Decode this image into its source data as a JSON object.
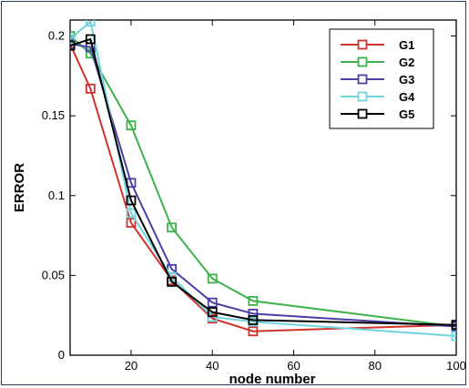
{
  "chart_data": {
    "type": "line",
    "title": "",
    "xlabel": "node number",
    "ylabel": "ERROR",
    "xlim": [
      5,
      100
    ],
    "ylim": [
      0,
      0.21
    ],
    "xticks": [
      20,
      40,
      60,
      80,
      100
    ],
    "yticks": [
      0,
      0.05,
      0.1,
      0.15,
      0.2
    ],
    "ytick_labels": [
      "0",
      "0.05",
      "0.1",
      "0.15",
      "0.2"
    ],
    "grid": false,
    "legend_position": "top-right",
    "marker": "square",
    "x": [
      5,
      10,
      20,
      30,
      40,
      50,
      100
    ],
    "series": [
      {
        "name": "G1",
        "color": "#d0342c",
        "values": [
          0.195,
          0.167,
          0.083,
          0.047,
          0.023,
          0.015,
          0.019
        ]
      },
      {
        "name": "G2",
        "color": "#3cb34a",
        "values": [
          0.2,
          0.189,
          0.144,
          0.08,
          0.048,
          0.034,
          0.018
        ]
      },
      {
        "name": "G3",
        "color": "#4b3fa8",
        "values": [
          0.195,
          0.193,
          0.108,
          0.054,
          0.033,
          0.026,
          0.018
        ]
      },
      {
        "name": "G4",
        "color": "#6fd3e0",
        "values": [
          0.198,
          0.209,
          0.089,
          0.049,
          0.024,
          0.021,
          0.012
        ]
      },
      {
        "name": "G5",
        "color": "#000000",
        "values": [
          0.194,
          0.198,
          0.097,
          0.046,
          0.027,
          0.022,
          0.019
        ]
      }
    ]
  }
}
